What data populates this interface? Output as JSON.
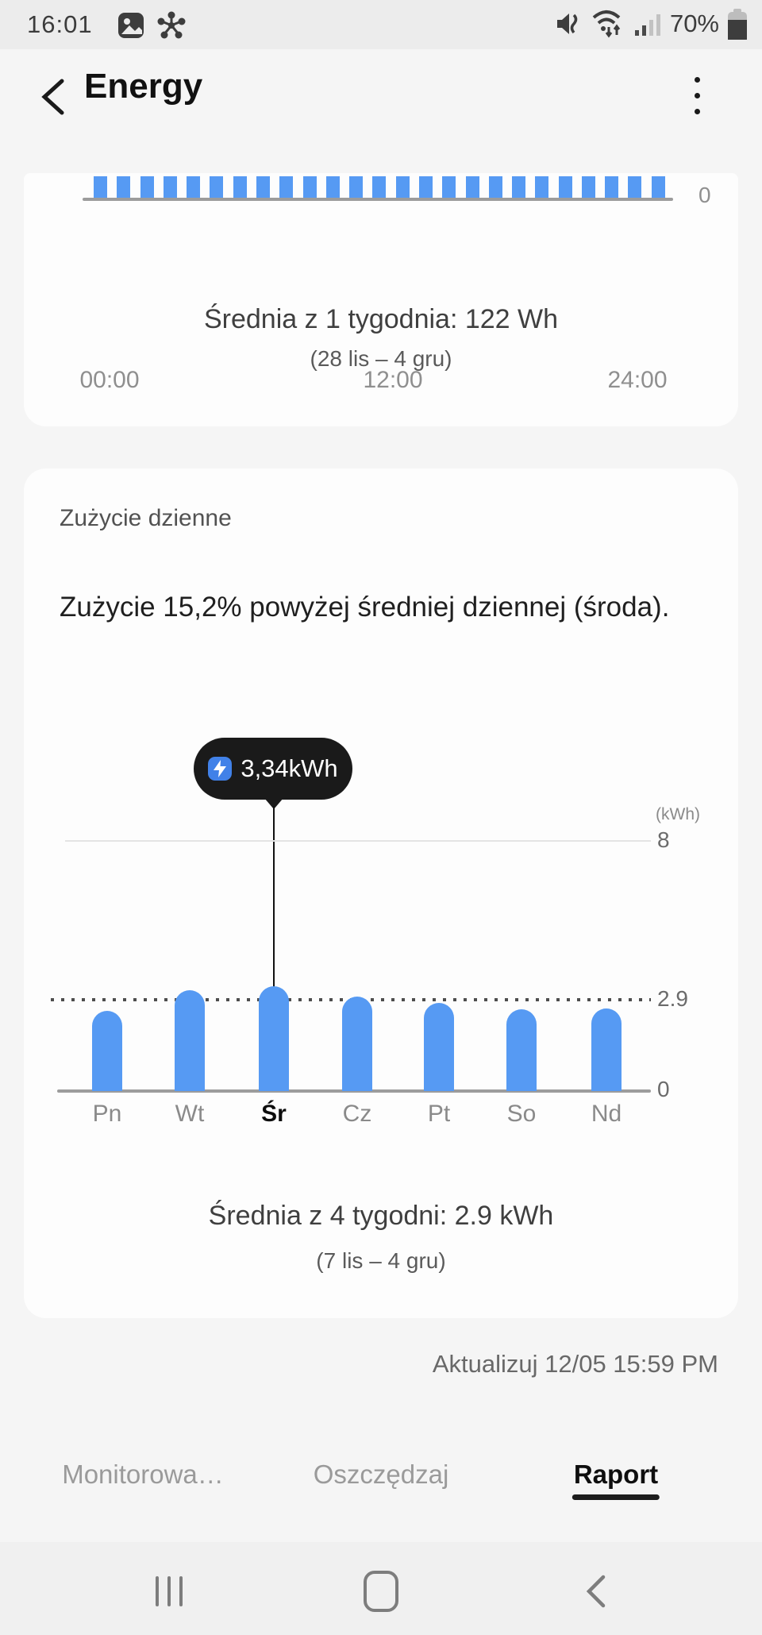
{
  "status_bar": {
    "time": "16:01",
    "battery": "70%",
    "left_icons": [
      "gallery-notification-icon",
      "molecule-notification-icon"
    ],
    "right_icons": [
      "sound-off-vibrate-icon",
      "wifi-icon",
      "signal-strength-icon",
      "battery-icon"
    ]
  },
  "header": {
    "title": "Energy"
  },
  "chart_data": [
    {
      "type": "bar",
      "title": "Hourly usage (top card, partially scrolled out of view)",
      "x_tick_labels": [
        "00:00",
        "12:00",
        "24:00"
      ],
      "bar_count": 25,
      "ytick_labels": {
        "base": "0"
      },
      "bar_color": "#569af3",
      "note_visible": "only bottoms of equal-height bars visible"
    },
    {
      "type": "bar",
      "title": "Zużycie dzienne",
      "categories": [
        "Pn",
        "Wt",
        "Śr",
        "Cz",
        "Pt",
        "So",
        "Nd"
      ],
      "values": [
        2.56,
        3.21,
        3.34,
        3.01,
        2.81,
        2.61,
        2.63
      ],
      "highlight_index": 2,
      "highlight_label": "3,34kWh",
      "unit_label": "(kWh)",
      "ylim": [
        0,
        8
      ],
      "yticks": [
        0,
        2.9,
        8
      ],
      "ytick_labels": {
        "top": "8",
        "mid": "2.9",
        "base": "0"
      },
      "average_line": 2.9,
      "legend": "none",
      "grid": "top gridline solid, average dotted, baseline solid",
      "bar_color": "#569af3"
    }
  ],
  "hourly_card": {
    "average_label": "Średnia z 1 tygodnia: 122 Wh",
    "date_range": "(28 lis – 4 gru)"
  },
  "daily_card": {
    "section_label": "Zużycie dzienne",
    "headline": "Zużycie 15,2% powyżej średniej dziennej (środa).",
    "tooltip_value": "3,34kWh",
    "average_label": "Średnia z 4 tygodni: 2.9 kWh",
    "date_range": "(7 lis – 4 gru)"
  },
  "updated": "Aktualizuj 12/05 15:59 PM",
  "tabs": [
    {
      "name": "tab-monitorowanie",
      "label": "Monitorowa…",
      "active": false
    },
    {
      "name": "tab-oszczedzaj",
      "label": "Oszczędzaj",
      "active": false
    },
    {
      "name": "tab-raport",
      "label": "Raport",
      "active": true
    }
  ],
  "colors": {
    "bar_blue": "#569af3",
    "tooltip_bg": "#1a1a1a",
    "tooltip_badge_blue": "#4181e8",
    "card_bg": "#fdfdfd",
    "page_bg": "#f5f5f5"
  }
}
